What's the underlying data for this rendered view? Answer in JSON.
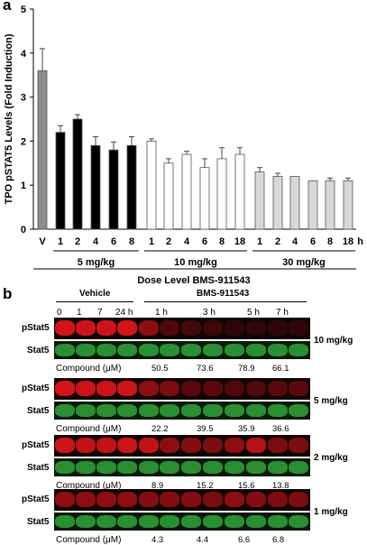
{
  "panel_a_label": "a",
  "panel_b_label": "b",
  "chart_data": {
    "type": "bar",
    "title": "",
    "ylabel": "TPO pSTAT5 Levels (Fold Induction)",
    "xlabel": "Dose Level BMS-911543",
    "ylim": [
      0,
      5
    ],
    "yticks": [
      "0",
      "1",
      "2",
      "3",
      "4",
      "5"
    ],
    "x_unit": "h",
    "grid": false,
    "bars": [
      {
        "label": "V",
        "value": 3.6,
        "error": 0.5,
        "group": "vehicle"
      },
      {
        "label": "1",
        "value": 2.2,
        "error": 0.15,
        "group": "5mg"
      },
      {
        "label": "2",
        "value": 2.5,
        "error": 0.1,
        "group": "5mg"
      },
      {
        "label": "4",
        "value": 1.9,
        "error": 0.2,
        "group": "5mg"
      },
      {
        "label": "6",
        "value": 1.8,
        "error": 0.18,
        "group": "5mg"
      },
      {
        "label": "8",
        "value": 1.9,
        "error": 0.2,
        "group": "5mg"
      },
      {
        "label": "1",
        "value": 2.0,
        "error": 0.05,
        "group": "10mg"
      },
      {
        "label": "2",
        "value": 1.5,
        "error": 0.1,
        "group": "10mg"
      },
      {
        "label": "4",
        "value": 1.7,
        "error": 0.07,
        "group": "10mg"
      },
      {
        "label": "6",
        "value": 1.4,
        "error": 0.2,
        "group": "10mg"
      },
      {
        "label": "8",
        "value": 1.6,
        "error": 0.25,
        "group": "10mg"
      },
      {
        "label": "18",
        "value": 1.7,
        "error": 0.15,
        "group": "10mg"
      },
      {
        "label": "1",
        "value": 1.3,
        "error": 0.1,
        "group": "30mg"
      },
      {
        "label": "2",
        "value": 1.2,
        "error": 0.07,
        "group": "30mg"
      },
      {
        "label": "4",
        "value": 1.2,
        "error": 0.0,
        "group": "30mg"
      },
      {
        "label": "6",
        "value": 1.1,
        "error": 0.0,
        "group": "30mg"
      },
      {
        "label": "8",
        "value": 1.1,
        "error": 0.06,
        "group": "30mg"
      },
      {
        "label": "18",
        "value": 1.1,
        "error": 0.06,
        "group": "30mg"
      }
    ],
    "groups": [
      {
        "id": "vehicle",
        "label": "",
        "color": "#8c8c8c"
      },
      {
        "id": "5mg",
        "label": "5 mg/kg",
        "color": "#000000"
      },
      {
        "id": "10mg",
        "label": "10 mg/kg",
        "color": "#ffffff"
      },
      {
        "id": "30mg",
        "label": "30 mg/kg",
        "color": "#d8d8d8"
      }
    ]
  },
  "blot": {
    "vehicle_label": "Vehicle",
    "drug_label": "BMS-911543",
    "lane_labels": [
      "0",
      "1",
      "7",
      "24 h",
      "1 h",
      "3 h",
      "5 h",
      "7 h"
    ],
    "row_labels": {
      "pstat5": "pStat5",
      "stat5": "Stat5",
      "compound": "Compound (μM)"
    },
    "colors": {
      "red": "#e0151b",
      "green": "#2fa43a"
    },
    "doses": [
      {
        "dose": "10 mg/kg",
        "compound_values": [
          "50.5",
          "73.6",
          "78.9",
          "66.1"
        ],
        "pstat5_intensity": [
          0.95,
          0.9,
          0.9,
          0.95,
          0.6,
          0.3,
          0.25,
          0.2,
          0.15,
          0.15,
          0.15,
          0.15
        ]
      },
      {
        "dose": "5 mg/kg",
        "compound_values": [
          "22.2",
          "39.5",
          "35.9",
          "36.6"
        ],
        "pstat5_intensity": [
          0.95,
          0.9,
          0.9,
          0.9,
          0.6,
          0.5,
          0.35,
          0.35,
          0.3,
          0.3,
          0.35,
          0.35
        ]
      },
      {
        "dose": "2 mg/kg",
        "compound_values": [
          "8.9",
          "15.2",
          "15.6",
          "13.8"
        ],
        "pstat5_intensity": [
          0.9,
          0.85,
          0.85,
          0.9,
          0.85,
          0.6,
          0.55,
          0.5,
          0.6,
          0.8,
          0.5,
          0.5
        ]
      },
      {
        "dose": "1 mg/kg",
        "compound_values": [
          "4.3",
          "4.4",
          "6.6",
          "6.8"
        ],
        "pstat5_intensity": [
          0.6,
          0.6,
          0.6,
          0.6,
          0.55,
          0.55,
          0.55,
          0.5,
          0.6,
          0.55,
          0.5,
          0.5
        ]
      }
    ]
  }
}
